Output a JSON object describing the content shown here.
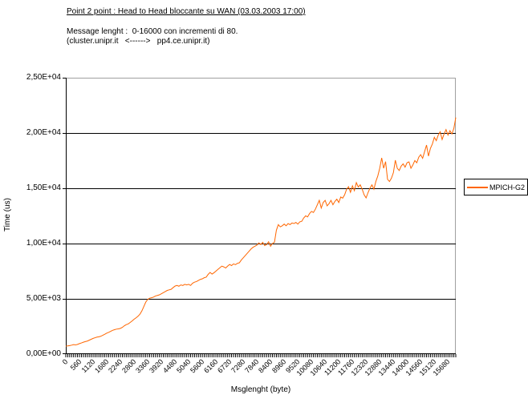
{
  "header": {
    "title": "Point 2 point : Head to Head bloccante su WAN (03.03.2003 17:00)",
    "subtitle_line1": "Message lenght :  0-16000 con incrementi di 80.",
    "subtitle_line2": "(cluster.unipr.it   <------>   pp4.ce.unipr.it)"
  },
  "colors": {
    "series_line": "#FF6600",
    "gridline": "#000000",
    "plot_border": "#A0A0A0",
    "axis": "#000000",
    "background": "#FFFFFF",
    "legend_border": "#000000"
  },
  "legend": {
    "position": "right",
    "entry": "MPICH-G2"
  },
  "chart_data": {
    "type": "line",
    "title": "Point 2 point : Head to Head bloccante su WAN (03.03.2003 17:00)",
    "xlabel": "Msglenght (byte)",
    "ylabel": "Time (us)",
    "x_start": 0,
    "x_step": 80,
    "x_end": 16000,
    "xlim": [
      0,
      16000
    ],
    "ylim": [
      0,
      25000
    ],
    "grid": "horizontal",
    "legend_position": "right",
    "y_tick_labels": [
      "0,00E+00",
      "5,00E+03",
      "1,00E+04",
      "1,50E+04",
      "2,00E+04",
      "2,50E+04"
    ],
    "x_tick_labels": [
      "0",
      "560",
      "1120",
      "1680",
      "2240",
      "2800",
      "3360",
      "3920",
      "4480",
      "5040",
      "5600",
      "6160",
      "6720",
      "7280",
      "7840",
      "8400",
      "8960",
      "9520",
      "10080",
      "10640",
      "11200",
      "11760",
      "12320",
      "12880",
      "13440",
      "14000",
      "14560",
      "15120",
      "15680"
    ],
    "x_tick_interval_bytes": 560,
    "series": [
      {
        "name": "MPICH-G2",
        "color": "#FF6600",
        "values": [
          720,
          740,
          770,
          810,
          860,
          830,
          880,
          950,
          1010,
          1080,
          1130,
          1180,
          1260,
          1340,
          1420,
          1480,
          1540,
          1570,
          1620,
          1710,
          1800,
          1900,
          1970,
          2060,
          2150,
          2210,
          2260,
          2280,
          2330,
          2420,
          2560,
          2670,
          2730,
          2860,
          3000,
          3150,
          3280,
          3420,
          3610,
          3900,
          4300,
          4700,
          4950,
          5060,
          5100,
          5160,
          5260,
          5310,
          5360,
          5460,
          5560,
          5660,
          5760,
          5810,
          5860,
          6010,
          6150,
          6210,
          6140,
          6260,
          6210,
          6310,
          6260,
          6310,
          6210,
          6410,
          6510,
          6560,
          6660,
          6760,
          6810,
          6910,
          6960,
          7210,
          7390,
          7240,
          7360,
          7510,
          7660,
          7810,
          7960,
          7890,
          7790,
          7960,
          8110,
          8010,
          8160,
          8090,
          8210,
          8260,
          8510,
          8710,
          8910,
          9110,
          9310,
          9510,
          9660,
          9760,
          9860,
          10060,
          9910,
          10110,
          9810,
          9910,
          10160,
          9760,
          10010,
          10110,
          11210,
          11710,
          11510,
          11610,
          11760,
          11610,
          11810,
          11710,
          11860,
          11810,
          11910,
          11760,
          11960,
          12010,
          12310,
          12510,
          12410,
          12710,
          12910,
          12810,
          13110,
          13510,
          13910,
          13210,
          13710,
          13910,
          13410,
          13610,
          13910,
          13510,
          13810,
          14010,
          13710,
          14210,
          14110,
          14410,
          14910,
          15140,
          14640,
          15220,
          14780,
          15510,
          15110,
          15310,
          14910,
          14410,
          14130,
          14610,
          15010,
          15310,
          14910,
          15610,
          16110,
          16810,
          17750,
          16810,
          17410,
          15810,
          15610,
          15910,
          16410,
          17540,
          16810,
          16610,
          17010,
          17210,
          16910,
          17310,
          17390,
          16810,
          17110,
          17510,
          17310,
          17810,
          18040,
          17710,
          18310,
          18910,
          17910,
          18610,
          19010,
          19610,
          19310,
          19810,
          20110,
          19410,
          19910,
          20310,
          19810,
          20210,
          19910,
          20410,
          21400
        ]
      }
    ]
  }
}
